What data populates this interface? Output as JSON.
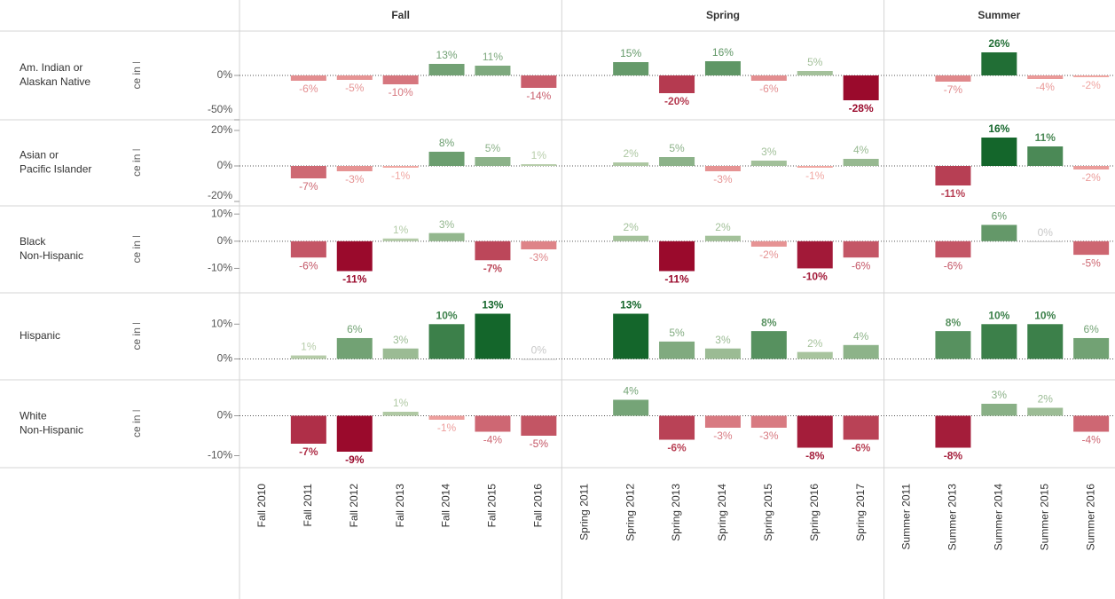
{
  "chart_data": {
    "type": "bar",
    "y_label": "% Difference in Headcount",
    "groups": [
      {
        "name": "Fall",
        "categories": [
          "Fall 2010",
          "Fall 2011",
          "Fall 2012",
          "Fall 2013",
          "Fall 2014",
          "Fall 2015",
          "Fall 2016"
        ]
      },
      {
        "name": "Spring",
        "categories": [
          "Spring 2011",
          "Spring 2012",
          "Spring 2013",
          "Spring 2014",
          "Spring 2015",
          "Spring 2016",
          "Spring 2017"
        ]
      },
      {
        "name": "Summer",
        "categories": [
          "Summer 2011",
          "Summer 2013",
          "Summer 2014",
          "Summer 2015",
          "Summer 2016"
        ]
      }
    ],
    "colors": {
      "negative_light": "#f7b2ab",
      "negative_dark": "#9a0a2c",
      "positive_light": "#c3d5b3",
      "positive_dark": "#14662b",
      "zero": "#c8c8c8"
    },
    "facets": [
      {
        "name": "Am. Indian or\nAlaskan Native",
        "values": [
          null,
          -6,
          -5,
          -10,
          13,
          11,
          -14,
          null,
          15,
          -20,
          16,
          -6,
          5,
          -28,
          null,
          -7,
          26,
          -4,
          -2
        ],
        "value_labels": [
          null,
          "-6%",
          "-5%",
          "-10%",
          "13%",
          "11%",
          "-14%",
          null,
          "15%",
          "-20%",
          "16%",
          "-6%",
          "5%",
          "-28%",
          null,
          "-7%",
          "26%",
          "-4%",
          "-2%"
        ],
        "ylim": [
          -50,
          50
        ],
        "yticks": [
          {
            "value": -50,
            "label": "-50%"
          },
          {
            "value": 0,
            "label": "0%"
          }
        ]
      },
      {
        "name": "Asian or\nPacific Islander",
        "values": [
          null,
          -7,
          -3,
          -1,
          8,
          5,
          1,
          null,
          2,
          5,
          -3,
          3,
          -1,
          4,
          null,
          -11,
          16,
          11,
          -2
        ],
        "value_labels": [
          null,
          "-7%",
          "-3%",
          "-1%",
          "8%",
          "5%",
          "1%",
          null,
          "2%",
          "5%",
          "-3%",
          "3%",
          "-1%",
          "4%",
          null,
          "-11%",
          "16%",
          "11%",
          "-2%"
        ],
        "ylim": [
          -22.5,
          26
        ],
        "yticks": [
          {
            "value": -20,
            "label": "-20%"
          },
          {
            "value": 0,
            "label": "0%"
          },
          {
            "value": 20,
            "label": "20%"
          }
        ]
      },
      {
        "name": "Black\nNon-Hispanic",
        "values": [
          null,
          -6,
          -11,
          1,
          3,
          -7,
          -3,
          null,
          2,
          -11,
          2,
          -2,
          -10,
          -6,
          null,
          -6,
          6,
          0,
          -5
        ],
        "value_labels": [
          null,
          "-6%",
          "-11%",
          "1%",
          "3%",
          "-7%",
          "-3%",
          null,
          "2%",
          "-11%",
          "2%",
          "-2%",
          "-10%",
          "-6%",
          null,
          "-6%",
          "6%",
          "0%",
          "-5%"
        ],
        "ylim": [
          -19,
          13
        ],
        "yticks": [
          {
            "value": -10,
            "label": "-10%"
          },
          {
            "value": 0,
            "label": "0%"
          },
          {
            "value": 10,
            "label": "10%"
          }
        ]
      },
      {
        "name": "Hispanic",
        "values": [
          null,
          1,
          6,
          3,
          10,
          13,
          0,
          null,
          13,
          5,
          3,
          8,
          2,
          4,
          null,
          8,
          10,
          10,
          6
        ],
        "value_labels": [
          null,
          "1%",
          "6%",
          "3%",
          "10%",
          "13%",
          "0%",
          null,
          "13%",
          "5%",
          "3%",
          "8%",
          "2%",
          "4%",
          null,
          "8%",
          "10%",
          "10%",
          "6%"
        ],
        "ylim": [
          -6,
          19
        ],
        "yticks": [
          {
            "value": 0,
            "label": "0%"
          },
          {
            "value": 10,
            "label": "10%"
          }
        ]
      },
      {
        "name": "White\nNon-Hispanic",
        "values": [
          null,
          -7,
          -9,
          1,
          -1,
          -4,
          -5,
          null,
          4,
          -6,
          -3,
          -3,
          -8,
          -6,
          null,
          -8,
          3,
          2,
          -4
        ],
        "value_labels": [
          null,
          "-7%",
          "-9%",
          "1%",
          "-1%",
          "-4%",
          "-5%",
          null,
          "4%",
          "-6%",
          "-3%",
          "-3%",
          "-8%",
          "-6%",
          null,
          "-8%",
          "3%",
          "2%",
          "-4%"
        ],
        "ylim": [
          -13,
          9
        ],
        "yticks": [
          {
            "value": -10,
            "label": "-10%"
          },
          {
            "value": 0,
            "label": "0%"
          }
        ]
      }
    ]
  }
}
